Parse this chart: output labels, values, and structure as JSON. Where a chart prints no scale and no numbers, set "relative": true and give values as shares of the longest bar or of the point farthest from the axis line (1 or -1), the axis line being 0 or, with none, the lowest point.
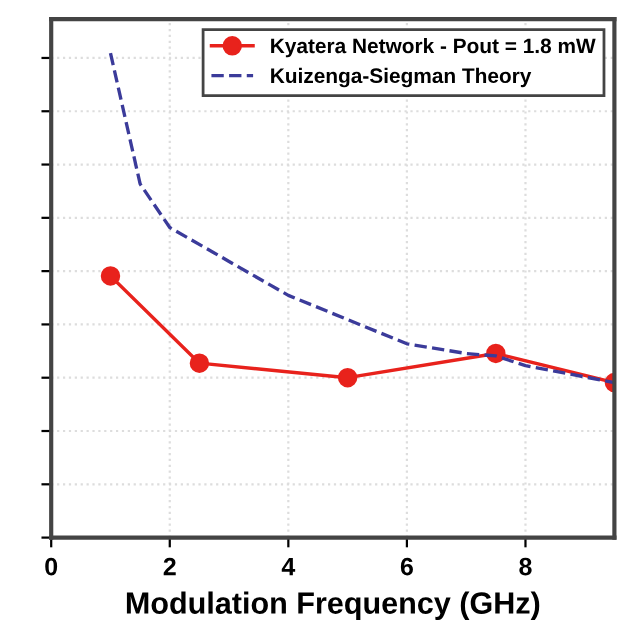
{
  "chart_data": {
    "type": "line",
    "xlabel": "Modulation Frequency (GHz)",
    "relative": true,
    "xlim": [
      0,
      9.5
    ],
    "xticks": [
      0,
      2,
      4,
      6,
      8
    ],
    "grid": true,
    "legend": "top right",
    "series": [
      {
        "name": "Kyatera Network - Pout = 1.8 mW",
        "color": "#e8221c",
        "marker": "circle",
        "line_style": "solid",
        "x": [
          1,
          2.5,
          5,
          7.5,
          9.5
        ],
        "values": [
          0.54,
          0.36,
          0.33,
          0.38,
          0.32
        ]
      },
      {
        "name": "Kuizenga-Siegman Theory",
        "color": "#3b3b9a",
        "marker": "none",
        "line_style": "dashed",
        "x": [
          1,
          1.5,
          2,
          3,
          4,
          5,
          6,
          7,
          7.5,
          8,
          9.5
        ],
        "values": [
          1.0,
          0.73,
          0.64,
          0.57,
          0.5,
          0.45,
          0.4,
          0.38,
          0.375,
          0.355,
          0.32
        ]
      }
    ]
  }
}
